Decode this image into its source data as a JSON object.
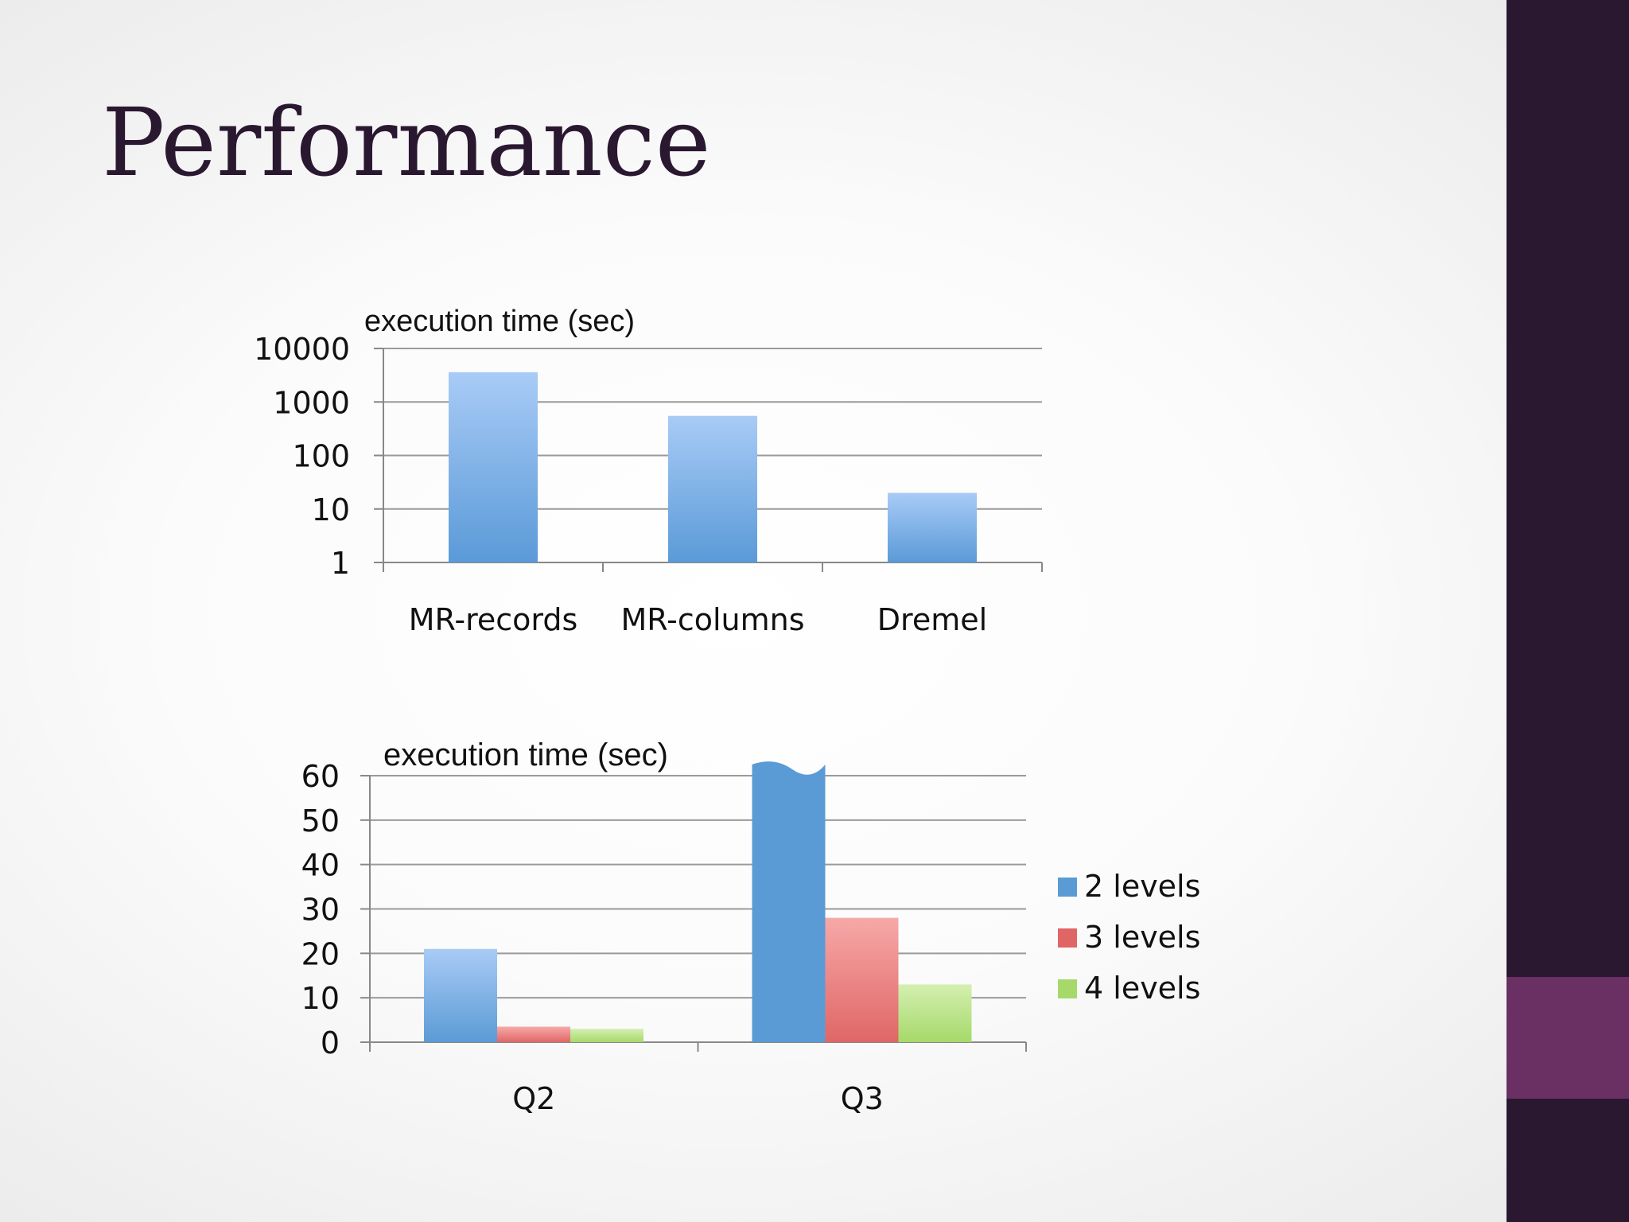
{
  "slide": {
    "title": "Performance",
    "colors": {
      "sidebar": "#2a1830",
      "sidebar_accent": "#6a3064",
      "title": "#2a1830"
    }
  },
  "chart_data": [
    {
      "type": "bar",
      "title": "",
      "ylabel": "execution time (sec)",
      "xlabel": "",
      "yscale": "log",
      "ylim": [
        1,
        10000
      ],
      "yticks": [
        "10000",
        "1000",
        "100",
        "10",
        "1"
      ],
      "categories": [
        "MR-records",
        "MR-columns",
        "Dremel"
      ],
      "values": [
        3600,
        550,
        20
      ],
      "colors": {
        "top": "#a9cbf6",
        "bottom": "#5a9ad8"
      },
      "grid": true,
      "legend": "none"
    },
    {
      "type": "bar",
      "title": "",
      "ylabel": "execution time (sec)",
      "xlabel": "",
      "yscale": "linear",
      "ylim": [
        0,
        60
      ],
      "yticks": [
        "60",
        "50",
        "40",
        "30",
        "20",
        "10",
        "0"
      ],
      "categories": [
        "Q2",
        "Q3"
      ],
      "series": [
        {
          "name": "2 levels",
          "values": [
            21,
            62
          ],
          "color": "#5b9bd5",
          "light": "#a9cbf6"
        },
        {
          "name": "3 levels",
          "values": [
            3.5,
            28
          ],
          "color": "#e06666",
          "light": "#f7a8a8"
        },
        {
          "name": "4 levels",
          "values": [
            3,
            13
          ],
          "color": "#a6d96a",
          "light": "#d4efb0"
        }
      ],
      "grid": true,
      "legend": "right"
    }
  ]
}
